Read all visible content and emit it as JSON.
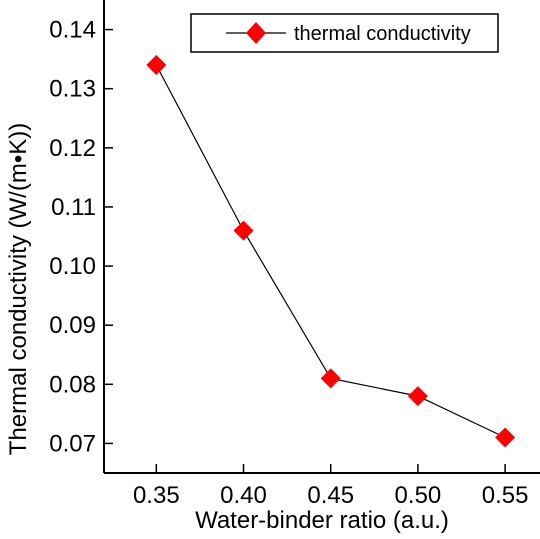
{
  "chart_data": {
    "type": "line",
    "xlabel": "Water-binder ratio (a.u.)",
    "ylabel": "Thermal conductivity (W/(m•K))",
    "xlim": [
      0.32,
      0.57
    ],
    "ylim": [
      0.065,
      0.145
    ],
    "x_ticks": [
      "0.35",
      "0.40",
      "0.45",
      "0.50",
      "0.55"
    ],
    "y_ticks": [
      "0.07",
      "0.08",
      "0.09",
      "0.10",
      "0.11",
      "0.12",
      "0.13",
      "0.14"
    ],
    "x_tick_values": [
      0.35,
      0.4,
      0.45,
      0.5,
      0.55
    ],
    "y_tick_values": [
      0.07,
      0.08,
      0.09,
      0.1,
      0.11,
      0.12,
      0.13,
      0.14
    ],
    "legend_position": "top-right",
    "grid": false,
    "marker_color": "#ff0000",
    "line_color": "#000000",
    "series": [
      {
        "name": "thermal conductivity",
        "x": [
          0.35,
          0.4,
          0.45,
          0.5,
          0.55
        ],
        "y": [
          0.134,
          0.106,
          0.081,
          0.078,
          0.071
        ]
      }
    ]
  }
}
